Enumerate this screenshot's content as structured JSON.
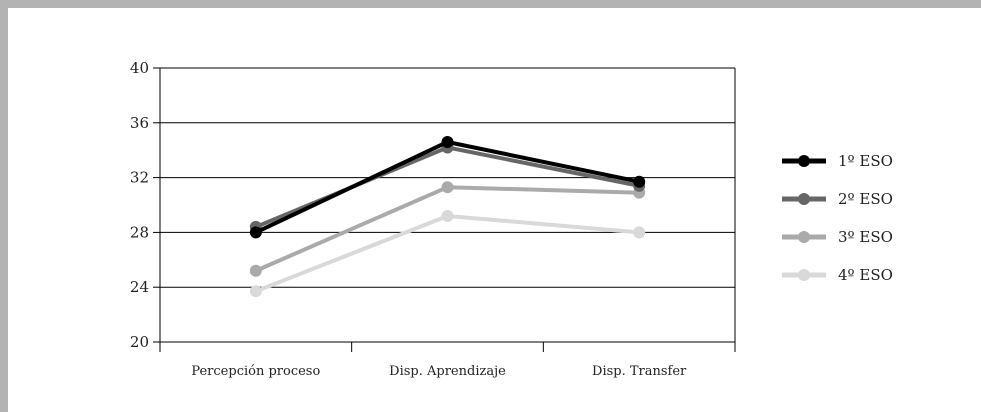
{
  "chart_data": {
    "type": "line",
    "categories": [
      "Percepción proceso",
      "Disp. Aprendizaje",
      "Disp. Transfer"
    ],
    "ylim": [
      20,
      40
    ],
    "yticks": [
      20,
      24,
      28,
      32,
      36,
      40
    ],
    "grid": true,
    "legend_position": "right",
    "series": [
      {
        "name": "1º ESO",
        "color": "#000000",
        "values": [
          28.0,
          34.6,
          31.7
        ]
      },
      {
        "name": "2º ESO",
        "color": "#666666",
        "values": [
          28.4,
          34.2,
          31.4
        ]
      },
      {
        "name": "3º ESO",
        "color": "#aaaaaa",
        "values": [
          25.2,
          31.3,
          30.9
        ]
      },
      {
        "name": "4º ESO",
        "color": "#d9d9d9",
        "values": [
          23.7,
          29.2,
          28.0
        ]
      }
    ]
  }
}
